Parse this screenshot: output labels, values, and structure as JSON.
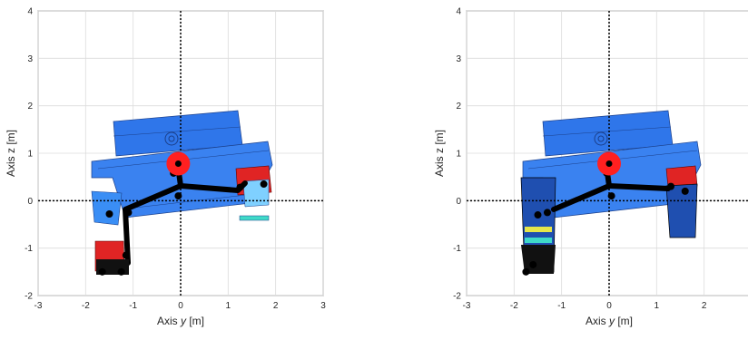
{
  "chart_data": [
    {
      "type": "scatter",
      "title": "",
      "xlabel_prefix": "Axis ",
      "xlabel_var": "y",
      "xlabel_unit": " [m]",
      "ylabel": "Axis z  [m]",
      "xlim": [
        -3,
        3
      ],
      "ylim": [
        -2,
        4
      ],
      "xticks": [
        "-3",
        "-2",
        "-1",
        "0",
        "1",
        "2",
        "3"
      ],
      "yticks": [
        "-2",
        "-1",
        "0",
        "1",
        "2",
        "3",
        "4"
      ],
      "grid": true,
      "reference_axes": {
        "x": 0,
        "z": 0,
        "style": "dotted",
        "color": "#000000"
      },
      "center_of_mass": {
        "y": -0.05,
        "z": 0.78,
        "color": "#ff2020"
      },
      "link_points": [
        {
          "y": -0.1,
          "z": 0.75
        },
        {
          "y": -0.15,
          "z": 0.58
        },
        {
          "y": -0.05,
          "z": 0.1
        },
        {
          "y": 1.25,
          "z": 0.28
        },
        {
          "y": 1.75,
          "z": 0.35
        },
        {
          "y": -1.1,
          "z": -0.25
        },
        {
          "y": -1.5,
          "z": -0.28
        },
        {
          "y": -1.15,
          "z": -1.15
        },
        {
          "y": -1.65,
          "z": -1.5
        },
        {
          "y": -1.25,
          "z": -1.5
        }
      ],
      "colors": {
        "body": "#2f76ea",
        "body_dark": "#1f5fd0",
        "wheel_red": "#e02424",
        "link": "#000000",
        "accent": "#3fd9c8"
      }
    },
    {
      "type": "scatter",
      "title": "",
      "xlabel_prefix": "Axis ",
      "xlabel_var": "y",
      "xlabel_unit": " [m]",
      "ylabel": "Axis z  [m]",
      "xlim": [
        -3,
        3
      ],
      "ylim": [
        -2,
        4
      ],
      "xticks": [
        "-3",
        "-2",
        "-1",
        "0",
        "1",
        "2"
      ],
      "yticks": [
        "-2",
        "-1",
        "0",
        "1",
        "2",
        "3",
        "4"
      ],
      "grid": true,
      "reference_axes": {
        "x": 0,
        "z": 0,
        "style": "dotted",
        "color": "#000000"
      },
      "center_of_mass": {
        "y": 0.0,
        "z": 0.78,
        "color": "#ff2020"
      },
      "link_points": [
        {
          "y": -0.05,
          "z": 0.58
        },
        {
          "y": 0.05,
          "z": 0.1
        },
        {
          "y": 1.3,
          "z": 0.3
        },
        {
          "y": 1.6,
          "z": 0.2
        },
        {
          "y": -1.3,
          "z": -0.25
        },
        {
          "y": -1.5,
          "z": -0.3
        },
        {
          "y": -1.6,
          "z": -1.35
        },
        {
          "y": -1.75,
          "z": -1.5
        }
      ],
      "colors": {
        "body": "#2f76ea",
        "body_dark": "#1f5fd0",
        "wheel_red": "#e02424",
        "link": "#000000",
        "accent": "#3fd9c8"
      }
    }
  ]
}
